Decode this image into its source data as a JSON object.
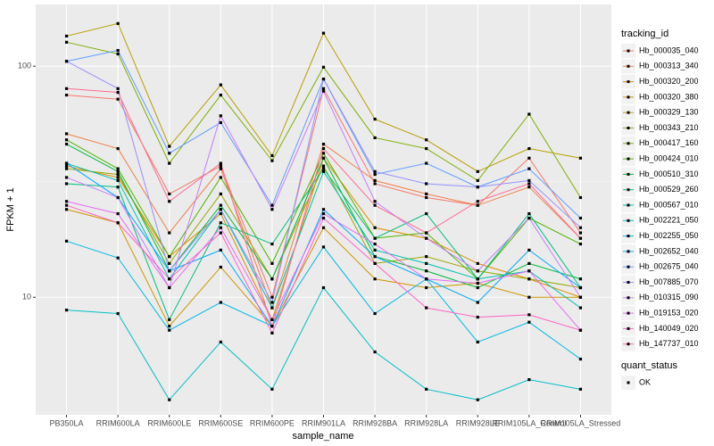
{
  "chart_data": {
    "type": "line",
    "x_label": "sample_name",
    "y_label": "FPKM + 1",
    "categories": [
      "PB350LA",
      "RRIM600LA",
      "RRIM600LE",
      "RRIM600SE",
      "RRIM600PE",
      "RRIM901LA",
      "RRIM928BA",
      "RRIM928LA",
      "RRIM928LE",
      "RRIM105LA_Control",
      "RRIM105LA_Stressed"
    ],
    "log_y": true,
    "grid": true,
    "ylim": [
      3.1,
      185
    ],
    "yticks": [
      10,
      100
    ],
    "legend_title": "tracking_id",
    "legend2_title": "quant_status",
    "legend2_label": "OK",
    "point_color": "#000000",
    "series": [
      {
        "name": "Hb_000035_040",
        "color": "#F8766D",
        "values": [
          75,
          72,
          28,
          37,
          10,
          80,
          31,
          27,
          25,
          40,
          19
        ]
      },
      {
        "name": "Hb_000313_340",
        "color": "#EF7F49",
        "values": [
          51,
          44,
          19,
          36,
          9,
          46,
          32,
          28,
          25,
          30,
          18
        ]
      },
      {
        "name": "Hb_000320_200",
        "color": "#DE8C00",
        "values": [
          37,
          33,
          15,
          23,
          8,
          40,
          20,
          18,
          14,
          12,
          10
        ]
      },
      {
        "name": "Hb_000320_380",
        "color": "#CD9600",
        "values": [
          24,
          21,
          7.5,
          13.5,
          7.5,
          20,
          12,
          11,
          11.5,
          10,
          10
        ]
      },
      {
        "name": "Hb_000329_130",
        "color": "#B79F00",
        "values": [
          135,
          153,
          45,
          83,
          41,
          139,
          59,
          48,
          35,
          44,
          40
        ]
      },
      {
        "name": "Hb_000343_210",
        "color": "#9AA800",
        "values": [
          36,
          34,
          14,
          28,
          12,
          37,
          14,
          15,
          13,
          12,
          11
        ]
      },
      {
        "name": "Hb_000417_160",
        "color": "#7CAE00",
        "values": [
          127,
          113,
          38,
          75,
          39,
          99,
          49,
          44,
          32,
          62,
          27
        ]
      },
      {
        "name": "Hb_000424_010",
        "color": "#4EB400",
        "values": [
          48,
          36,
          15,
          33,
          14,
          42,
          18,
          19,
          12,
          22,
          17
        ]
      },
      {
        "name": "Hb_000510_310",
        "color": "#00BA38",
        "values": [
          46,
          35,
          13,
          25,
          12,
          40,
          15,
          13,
          11,
          14,
          12
        ]
      },
      {
        "name": "Hb_000529_260",
        "color": "#00BF7D",
        "values": [
          31,
          30,
          8,
          21,
          17,
          36,
          18,
          23,
          12,
          23,
          11
        ]
      },
      {
        "name": "Hb_000567_010",
        "color": "#00C0AF",
        "values": [
          38,
          32,
          12,
          24,
          9,
          35,
          16,
          14,
          12,
          13,
          9
        ]
      },
      {
        "name": "Hb_002221_050",
        "color": "#00BFC4",
        "values": [
          8.8,
          8.5,
          3.6,
          6.4,
          4.0,
          11,
          5.8,
          4.0,
          3.6,
          4.4,
          4.0
        ]
      },
      {
        "name": "Hb_002255_050",
        "color": "#00B9E3",
        "values": [
          17.5,
          14.8,
          7.2,
          9.5,
          7.5,
          16.5,
          8.5,
          12,
          6.4,
          7.8,
          5.4
        ]
      },
      {
        "name": "Hb_002652_040",
        "color": "#00A9FF",
        "values": [
          38,
          27,
          13,
          16,
          7.5,
          24,
          15,
          12,
          9.5,
          16,
          11
        ]
      },
      {
        "name": "Hb_002675_040",
        "color": "#619CFF",
        "values": [
          105,
          117,
          42,
          57,
          25,
          88,
          34,
          38,
          30,
          36,
          22
        ]
      },
      {
        "name": "Hb_007885_070",
        "color": "#9590FF",
        "values": [
          105,
          80,
          13,
          24,
          9.5,
          88,
          35,
          31,
          30,
          32,
          20
        ]
      },
      {
        "name": "Hb_010315_090",
        "color": "#C77CFF",
        "values": [
          33,
          27,
          11,
          61,
          24,
          78,
          26,
          18,
          13,
          22,
          10
        ]
      },
      {
        "name": "Hb_019153_020",
        "color": "#E76BF3",
        "values": [
          26,
          23,
          11,
          20,
          8,
          23,
          17,
          12,
          11.5,
          13,
          7.2
        ]
      },
      {
        "name": "Hb_140049_020",
        "color": "#FF61C3",
        "values": [
          25,
          21,
          12,
          19,
          7,
          22,
          14,
          9,
          8.2,
          8.4,
          7.2
        ]
      },
      {
        "name": "Hb_147737_010",
        "color": "#FF6C91",
        "values": [
          80,
          77,
          26,
          38,
          7.5,
          44,
          25,
          19,
          26,
          31,
          18
        ]
      }
    ]
  }
}
